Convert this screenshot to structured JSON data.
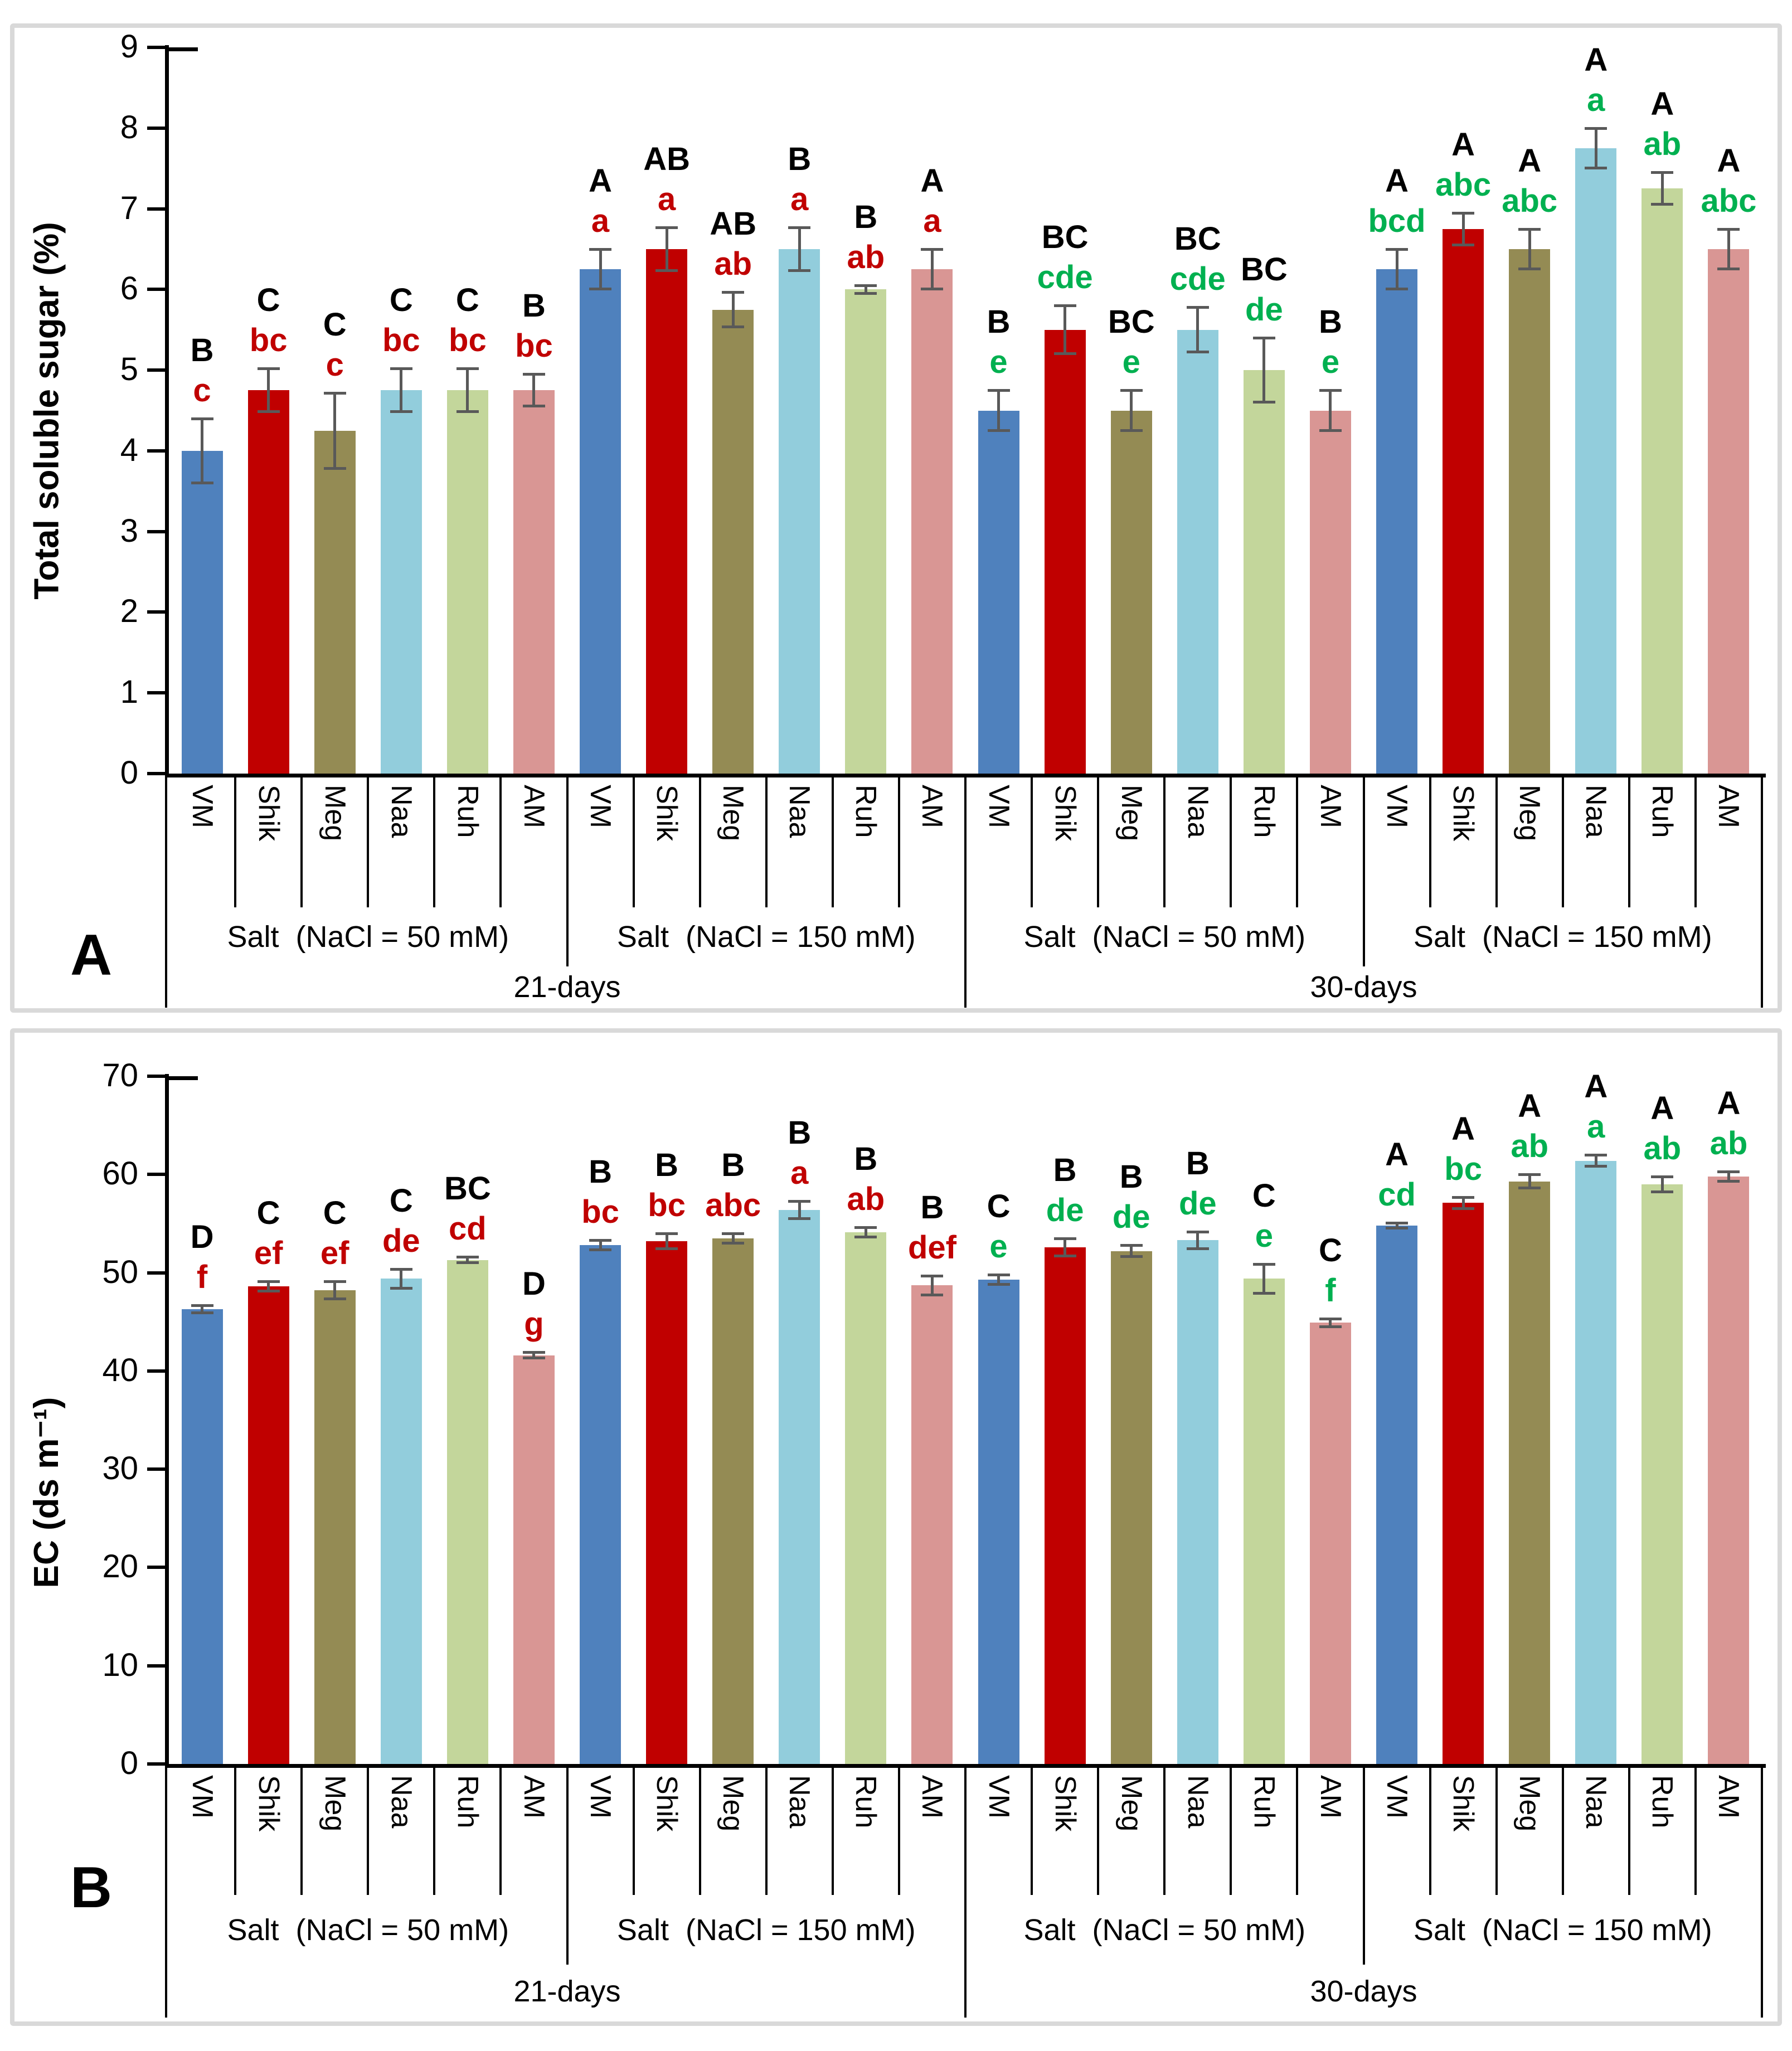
{
  "figure": {
    "panels": [
      "A",
      "B"
    ]
  },
  "colors": {
    "bar_VM": "#4F81BD",
    "bar_Shik": "#C00000",
    "bar_Meg": "#948B54",
    "bar_Naa": "#92CDDC",
    "bar_Ruh": "#C3D69B",
    "bar_AM": "#D99694",
    "letter_black": "#000000",
    "letter_red": "#C00000",
    "letter_green": "#00B050",
    "error_bar": "#595959",
    "axis": "#000000",
    "panel_border": "#D9D9D9"
  },
  "chart_data": [
    {
      "type": "bar",
      "panel_label": "A",
      "y_title": "Total soluble sugar (%)",
      "ylim": [
        0,
        9
      ],
      "yticks": [
        0,
        1,
        2,
        3,
        4,
        5,
        6,
        7,
        8,
        9
      ],
      "categories": [
        "VM",
        "Shik",
        "Meg",
        "Naa",
        "Ruh",
        "AM"
      ],
      "day_labels": [
        "21-days",
        "30-days"
      ],
      "legend": "none",
      "grid": "off",
      "groups": [
        {
          "salt_label": "Salt  (NaCl = 50 mM)",
          "day": "21-days",
          "letter_palette": "red",
          "bars": [
            {
              "cat": "VM",
              "value": 4.0,
              "err": 0.4,
              "upper": "B",
              "lower": "c"
            },
            {
              "cat": "Shik",
              "value": 4.75,
              "err": 0.27,
              "upper": "C",
              "lower": "bc"
            },
            {
              "cat": "Meg",
              "value": 4.25,
              "err": 0.47,
              "upper": "C",
              "lower": "c"
            },
            {
              "cat": "Naa",
              "value": 4.75,
              "err": 0.27,
              "upper": "C",
              "lower": "bc"
            },
            {
              "cat": "Ruh",
              "value": 4.75,
              "err": 0.27,
              "upper": "C",
              "lower": "bc"
            },
            {
              "cat": "AM",
              "value": 4.75,
              "err": 0.2,
              "upper": "B",
              "lower": "bc"
            }
          ]
        },
        {
          "salt_label": "Salt  (NaCl = 150 mM)",
          "day": "21-days",
          "letter_palette": "red",
          "bars": [
            {
              "cat": "VM",
              "value": 6.25,
              "err": 0.25,
              "upper": "A",
              "lower": "a"
            },
            {
              "cat": "Shik",
              "value": 6.5,
              "err": 0.27,
              "upper": "AB",
              "lower": "a"
            },
            {
              "cat": "Meg",
              "value": 5.75,
              "err": 0.22,
              "upper": "AB",
              "lower": "ab"
            },
            {
              "cat": "Naa",
              "value": 6.5,
              "err": 0.27,
              "upper": "B",
              "lower": "a"
            },
            {
              "cat": "Ruh",
              "value": 6.0,
              "err": 0.05,
              "upper": "B",
              "lower": "ab"
            },
            {
              "cat": "AM",
              "value": 6.25,
              "err": 0.25,
              "upper": "A",
              "lower": "a"
            }
          ]
        },
        {
          "salt_label": "Salt  (NaCl = 50 mM)",
          "day": "30-days",
          "letter_palette": "green",
          "bars": [
            {
              "cat": "VM",
              "value": 4.5,
              "err": 0.25,
              "upper": "B",
              "lower": "e"
            },
            {
              "cat": "Shik",
              "value": 5.5,
              "err": 0.3,
              "upper": "BC",
              "lower": "cde"
            },
            {
              "cat": "Meg",
              "value": 4.5,
              "err": 0.25,
              "upper": "BC",
              "lower": "e"
            },
            {
              "cat": "Naa",
              "value": 5.5,
              "err": 0.28,
              "upper": "BC",
              "lower": "cde"
            },
            {
              "cat": "Ruh",
              "value": 5.0,
              "err": 0.4,
              "upper": "BC",
              "lower": "de"
            },
            {
              "cat": "AM",
              "value": 4.5,
              "err": 0.25,
              "upper": "B",
              "lower": "e"
            }
          ]
        },
        {
          "salt_label": "Salt  (NaCl = 150 mM)",
          "day": "30-days",
          "letter_palette": "green",
          "bars": [
            {
              "cat": "VM",
              "value": 6.25,
              "err": 0.25,
              "upper": "A",
              "lower": "bcd"
            },
            {
              "cat": "Shik",
              "value": 6.75,
              "err": 0.2,
              "upper": "A",
              "lower": "abc"
            },
            {
              "cat": "Meg",
              "value": 6.5,
              "err": 0.25,
              "upper": "A",
              "lower": "abc"
            },
            {
              "cat": "Naa",
              "value": 7.75,
              "err": 0.25,
              "upper": "A",
              "lower": "a"
            },
            {
              "cat": "Ruh",
              "value": 7.25,
              "err": 0.2,
              "upper": "A",
              "lower": "ab"
            },
            {
              "cat": "AM",
              "value": 6.5,
              "err": 0.25,
              "upper": "A",
              "lower": "abc"
            }
          ]
        }
      ]
    },
    {
      "type": "bar",
      "panel_label": "B",
      "y_title": "EC (ds m⁻¹)",
      "ylim": [
        0,
        70
      ],
      "yticks": [
        0,
        10,
        20,
        30,
        40,
        50,
        60,
        70
      ],
      "categories": [
        "VM",
        "Shik",
        "Meg",
        "Naa",
        "Ruh",
        "AM"
      ],
      "day_labels": [
        "21-days",
        "30-days"
      ],
      "legend": "none",
      "grid": "off",
      "groups": [
        {
          "salt_label": "Salt  (NaCl = 50 mM)",
          "day": "21-days",
          "letter_palette": "red",
          "bars": [
            {
              "cat": "VM",
              "value": 46.3,
              "err": 0.4,
              "upper": "D",
              "lower": "f"
            },
            {
              "cat": "Shik",
              "value": 48.6,
              "err": 0.5,
              "upper": "C",
              "lower": "ef"
            },
            {
              "cat": "Meg",
              "value": 48.2,
              "err": 0.9,
              "upper": "C",
              "lower": "ef"
            },
            {
              "cat": "Naa",
              "value": 49.4,
              "err": 1.0,
              "upper": "C",
              "lower": "de"
            },
            {
              "cat": "Ruh",
              "value": 51.3,
              "err": 0.3,
              "upper": "BC",
              "lower": "cd"
            },
            {
              "cat": "AM",
              "value": 41.6,
              "err": 0.3,
              "upper": "D",
              "lower": "g"
            }
          ]
        },
        {
          "salt_label": "Salt  (NaCl = 150 mM)",
          "day": "21-days",
          "letter_palette": "red",
          "bars": [
            {
              "cat": "VM",
              "value": 52.8,
              "err": 0.5,
              "upper": "B",
              "lower": "bc"
            },
            {
              "cat": "Shik",
              "value": 53.2,
              "err": 0.8,
              "upper": "B",
              "lower": "bc"
            },
            {
              "cat": "Meg",
              "value": 53.5,
              "err": 0.5,
              "upper": "B",
              "lower": "abc"
            },
            {
              "cat": "Naa",
              "value": 56.4,
              "err": 0.9,
              "upper": "B",
              "lower": "a"
            },
            {
              "cat": "Ruh",
              "value": 54.1,
              "err": 0.5,
              "upper": "B",
              "lower": "ab"
            },
            {
              "cat": "AM",
              "value": 48.7,
              "err": 1.0,
              "upper": "B",
              "lower": "def"
            }
          ]
        },
        {
          "salt_label": "Salt  (NaCl = 50 mM)",
          "day": "30-days",
          "letter_palette": "green",
          "bars": [
            {
              "cat": "VM",
              "value": 49.3,
              "err": 0.5,
              "upper": "C",
              "lower": "e"
            },
            {
              "cat": "Shik",
              "value": 52.6,
              "err": 0.9,
              "upper": "B",
              "lower": "de"
            },
            {
              "cat": "Meg",
              "value": 52.2,
              "err": 0.6,
              "upper": "B",
              "lower": "de"
            },
            {
              "cat": "Naa",
              "value": 53.3,
              "err": 0.9,
              "upper": "B",
              "lower": "de"
            },
            {
              "cat": "Ruh",
              "value": 49.4,
              "err": 1.5,
              "upper": "C",
              "lower": "e"
            },
            {
              "cat": "AM",
              "value": 44.9,
              "err": 0.4,
              "upper": "C",
              "lower": "f"
            }
          ]
        },
        {
          "salt_label": "Salt  (NaCl = 150 mM)",
          "day": "30-days",
          "letter_palette": "green",
          "bars": [
            {
              "cat": "VM",
              "value": 54.8,
              "err": 0.3,
              "upper": "A",
              "lower": "cd"
            },
            {
              "cat": "Shik",
              "value": 57.1,
              "err": 0.6,
              "upper": "A",
              "lower": "bc"
            },
            {
              "cat": "Meg",
              "value": 59.3,
              "err": 0.7,
              "upper": "A",
              "lower": "ab"
            },
            {
              "cat": "Naa",
              "value": 61.4,
              "err": 0.6,
              "upper": "A",
              "lower": "a"
            },
            {
              "cat": "Ruh",
              "value": 59.0,
              "err": 0.8,
              "upper": "A",
              "lower": "ab"
            },
            {
              "cat": "AM",
              "value": 59.8,
              "err": 0.5,
              "upper": "A",
              "lower": "ab"
            }
          ]
        }
      ]
    }
  ]
}
